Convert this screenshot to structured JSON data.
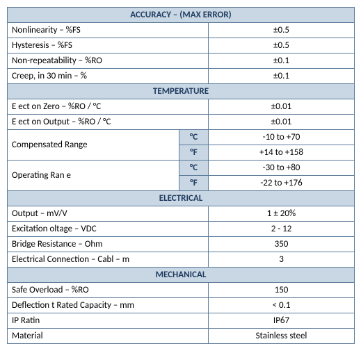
{
  "colors": {
    "header_bg": "#c8d7e3",
    "header_text": "#1f3a5f",
    "border": "#5b7a99",
    "cell_bg": "#ffffff",
    "cell_text": "#000000"
  },
  "sections": {
    "accuracy": {
      "title": "ACCURACY – (MAX ERROR)",
      "rows": [
        {
          "param": "Nonlinearity – %FS",
          "value": "±0.5"
        },
        {
          "param": "Hysteresis – %FS",
          "value": "±0.5"
        },
        {
          "param": "Non-repeatability – %RO",
          "value": "±0.1"
        },
        {
          "param": "Creep, in 30 min – %",
          "value": "±0.1"
        }
      ]
    },
    "temperature": {
      "title": "TEMPERATURE",
      "simple_rows": [
        {
          "param": "E ect on Zero – %RO / °C",
          "value": "±0.01"
        },
        {
          "param": "E ect on Output – %RO / °C",
          "value": "±0.01"
        }
      ],
      "compensated": {
        "param": "Compensated Range",
        "c_unit": "°C",
        "c_value": "-10 to +70",
        "f_unit": "°F",
        "f_value": "+14 to +158"
      },
      "operating": {
        "param": "Operating Ran e",
        "c_unit": "°C",
        "c_value": "-30 to +80",
        "f_unit": "°F",
        "f_value": "-22 to +176"
      }
    },
    "electrical": {
      "title": "ELECTRICAL",
      "rows": [
        {
          "param": "Output – mV/V",
          "value": "1 ± 20%"
        },
        {
          "param": "Excitation oltage – VDC",
          "value": "2 - 12"
        },
        {
          "param": "Bridge Resistance – Ohm",
          "value": "350"
        },
        {
          "param": "Electrical Connection – Cabl – m",
          "value": "3"
        }
      ]
    },
    "mechanical": {
      "title": "MECHANICAL",
      "rows": [
        {
          "param": "Safe Overload – %RO",
          "value": "150"
        },
        {
          "param": "Deflection t Rated Capacity – mm",
          "value": "< 0.1"
        },
        {
          "param": "IP Ratin",
          "value": "IP67"
        },
        {
          "param": "Material",
          "value": "Stainless steel"
        }
      ]
    }
  }
}
